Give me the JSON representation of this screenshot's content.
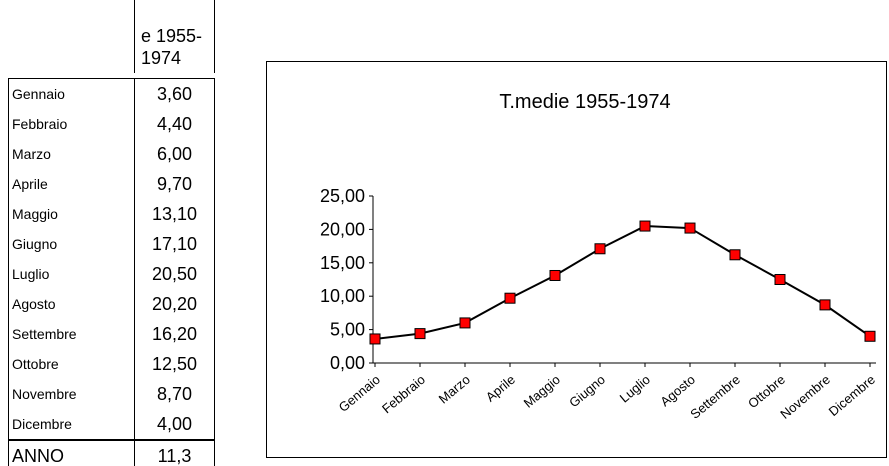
{
  "table": {
    "header": "e 1955-\n1974",
    "rows": [
      {
        "month": "Gennaio",
        "value": "3,60"
      },
      {
        "month": "Febbraio",
        "value": "4,40"
      },
      {
        "month": "Marzo",
        "value": "6,00"
      },
      {
        "month": "Aprile",
        "value": "9,70"
      },
      {
        "month": "Maggio",
        "value": "13,10"
      },
      {
        "month": "Giugno",
        "value": "17,10"
      },
      {
        "month": "Luglio",
        "value": "20,50"
      },
      {
        "month": "Agosto",
        "value": "20,20"
      },
      {
        "month": "Settembre",
        "value": "16,20"
      },
      {
        "month": "Ottobre",
        "value": "12,50"
      },
      {
        "month": "Novembre",
        "value": "8,70"
      },
      {
        "month": "Dicembre",
        "value": "4,00"
      }
    ],
    "annual": {
      "label": "ANNO",
      "value": "11,3"
    }
  },
  "chart_data": {
    "type": "line",
    "title": "T.medie 1955-1974",
    "xlabel": "",
    "ylabel": "",
    "categories": [
      "Gennaio",
      "Febbraio",
      "Marzo",
      "Aprile",
      "Maggio",
      "Giugno",
      "Luglio",
      "Agosto",
      "Settembre",
      "Ottobre",
      "Novembre",
      "Dicembre"
    ],
    "values": [
      3.6,
      4.4,
      6.0,
      9.7,
      13.1,
      17.1,
      20.5,
      20.2,
      16.2,
      12.5,
      8.7,
      4.0
    ],
    "ylim": [
      0,
      25
    ],
    "yticks": [
      "0,00",
      "5,00",
      "10,00",
      "15,00",
      "20,00",
      "25,00"
    ],
    "grid": false,
    "legend": "none",
    "line_color": "#000000",
    "marker_color": "#ff0000",
    "marker_edge": "#000000"
  }
}
